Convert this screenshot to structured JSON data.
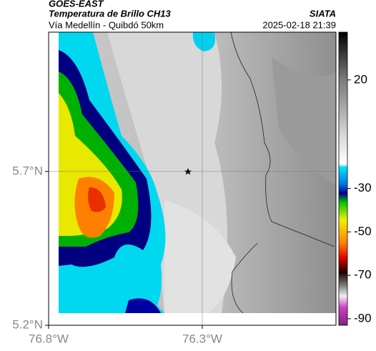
{
  "header": {
    "satellite": "GOES-EAST",
    "product": "Temperatura de Brillo CH13",
    "source": "SIATA",
    "route": "Vía Medellín - Quibdó 50km",
    "timestamp": "2025-02-18 21:39"
  },
  "map": {
    "xlim": [
      -76.8,
      -75.865
    ],
    "ylim": [
      5.2,
      6.153
    ],
    "xticks": [
      {
        "value": -76.8,
        "label": "76.8°W"
      },
      {
        "value": -76.3,
        "label": "76.3°W"
      }
    ],
    "yticks": [
      {
        "value": 5.2,
        "label": "5.2°N"
      },
      {
        "value": 5.7,
        "label": "5.7°N"
      }
    ]
  },
  "colorbar": {
    "lim": [
      -93,
      42
    ],
    "ticks": [
      20,
      -30,
      -50,
      -70,
      -90
    ]
  }
}
